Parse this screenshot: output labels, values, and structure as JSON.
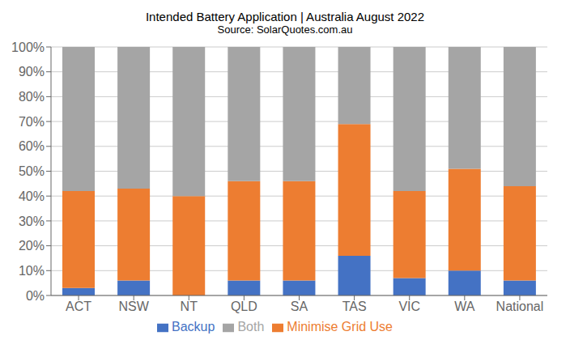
{
  "chart_data": {
    "type": "bar",
    "title": "Intended Battery Application | Australia August 2022",
    "subtitle": "Source: SolarQuotes.com.au",
    "categories": [
      "ACT",
      "NSW",
      "NT",
      "QLD",
      "SA",
      "TAS",
      "VIC",
      "WA",
      "National"
    ],
    "series": [
      {
        "name": "Backup",
        "color": "#4472C4",
        "values": [
          3,
          6,
          0,
          6,
          6,
          16,
          7,
          10,
          6
        ]
      },
      {
        "name": "Minimise Grid Use",
        "color": "#ED7D31",
        "values": [
          39,
          37,
          40,
          40,
          40,
          53,
          35,
          41,
          38
        ]
      },
      {
        "name": "Both",
        "color": "#A5A5A5",
        "values": [
          58,
          57,
          60,
          54,
          54,
          31,
          58,
          49,
          56
        ]
      }
    ],
    "ylim": [
      0,
      100
    ],
    "yticks": [
      {
        "value": 0,
        "label": "0%"
      },
      {
        "value": 10,
        "label": "10%"
      },
      {
        "value": 20,
        "label": "20%"
      },
      {
        "value": 30,
        "label": "30%"
      },
      {
        "value": 40,
        "label": "40%"
      },
      {
        "value": 50,
        "label": "50%"
      },
      {
        "value": 60,
        "label": "60%"
      },
      {
        "value": 70,
        "label": "70%"
      },
      {
        "value": 80,
        "label": "80%"
      },
      {
        "value": 90,
        "label": "90%"
      },
      {
        "value": 100,
        "label": "100%"
      }
    ],
    "grid": true,
    "legend": "bottom",
    "stacked": true
  }
}
